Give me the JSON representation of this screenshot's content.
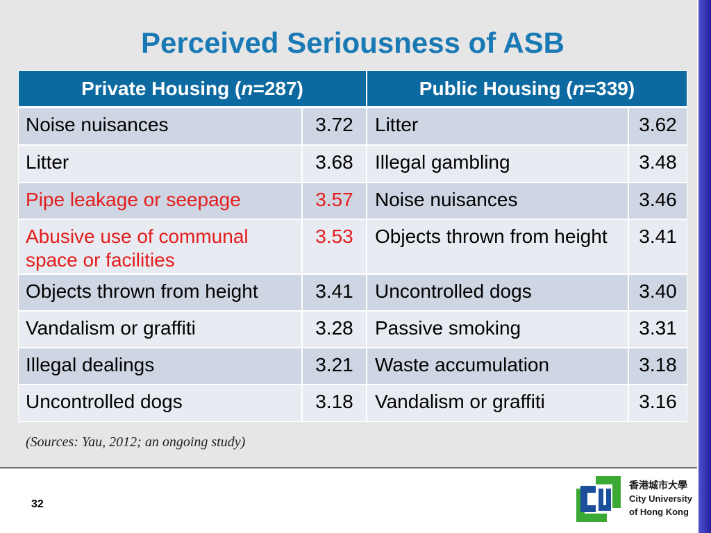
{
  "slide": {
    "title": "Perceived Seriousness of ASB",
    "source_note": "(Sources: Yau, 2012; an ongoing study)",
    "page_number": "32"
  },
  "table": {
    "headers": [
      {
        "label_start": "Private Housing (",
        "n_symbol": "n",
        "label_end": "=287)"
      },
      {
        "label_start": "Public Housing (",
        "n_symbol": "n",
        "label_end": "=339)"
      }
    ],
    "rows": [
      {
        "private_item": "Noise nuisances",
        "private_score": "3.72",
        "private_highlighted": false,
        "public_item": "Litter",
        "public_score": "3.62"
      },
      {
        "private_item": "Litter",
        "private_score": "3.68",
        "private_highlighted": false,
        "public_item": "Illegal gambling",
        "public_score": "3.48"
      },
      {
        "private_item": "Pipe leakage or seepage",
        "private_score": "3.57",
        "private_highlighted": true,
        "public_item": "Noise nuisances",
        "public_score": "3.46"
      },
      {
        "private_item": "Abusive use of communal space or facilities",
        "private_score": "3.53",
        "private_highlighted": true,
        "public_item": "Objects thrown from height",
        "public_score": "3.41"
      },
      {
        "private_item": "Objects thrown from height",
        "private_score": "3.41",
        "private_highlighted": false,
        "public_item": "Uncontrolled dogs",
        "public_score": "3.40"
      },
      {
        "private_item": "Vandalism or graffiti",
        "private_score": "3.28",
        "private_highlighted": false,
        "public_item": "Passive smoking",
        "public_score": "3.31"
      },
      {
        "private_item": "Illegal dealings",
        "private_score": "3.21",
        "private_highlighted": false,
        "public_item": "Waste accumulation",
        "public_score": "3.18"
      },
      {
        "private_item": "Uncontrolled dogs",
        "private_score": "3.18",
        "private_highlighted": false,
        "public_item": "Vandalism or graffiti",
        "public_score": "3.16"
      }
    ]
  },
  "logo": {
    "icon": "cityu-logo",
    "name_chinese": "香港城市大學",
    "name_english_line1": "City University",
    "name_english_line2": "of Hong Kong"
  },
  "colors": {
    "title": "#1979b4",
    "header_background": "#0d6aa1",
    "row_dark": "#cfd6e3",
    "row_light": "#e8ebf1",
    "highlight_text": "#e41c1c",
    "side_bar": "#2a2ac4",
    "logo_green": "#3aaa35",
    "logo_blue": "#1b4f9c"
  }
}
